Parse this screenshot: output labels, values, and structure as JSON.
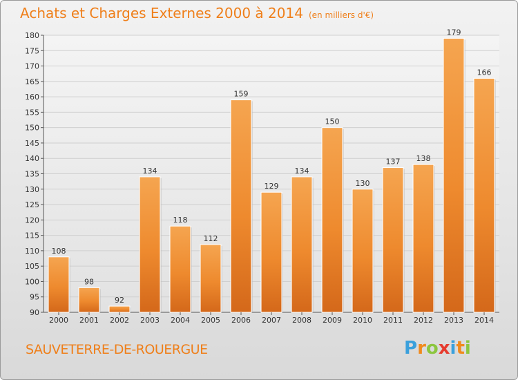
{
  "header": {
    "title": "Achats et Charges Externes 2000 à 2014",
    "subtitle": "(en milliers d'€)"
  },
  "commune": "SAUVETERRE-DE-ROUERGUE",
  "logo": {
    "text": "Proxiti",
    "letters": [
      "P",
      "r",
      "o",
      "x",
      "i",
      "t",
      "i"
    ]
  },
  "chart_data": {
    "type": "bar",
    "title": "Achats et Charges Externes 2000 à 2014",
    "subtitle": "(en milliers d'€)",
    "xlabel": "",
    "ylabel": "",
    "categories": [
      "2000",
      "2001",
      "2002",
      "2003",
      "2004",
      "2005",
      "2006",
      "2007",
      "2008",
      "2009",
      "2010",
      "2011",
      "2012",
      "2013",
      "2014"
    ],
    "values": [
      108,
      98,
      92,
      134,
      118,
      112,
      159,
      129,
      134,
      150,
      130,
      137,
      138,
      179,
      166
    ],
    "ylim": [
      90,
      180
    ],
    "yticks": [
      90,
      95,
      100,
      105,
      110,
      115,
      120,
      125,
      130,
      135,
      140,
      145,
      150,
      155,
      160,
      165,
      170,
      175,
      180
    ],
    "grid": true,
    "bar_color": "#f08a1c",
    "bar_color_dark": "#d9701b"
  }
}
